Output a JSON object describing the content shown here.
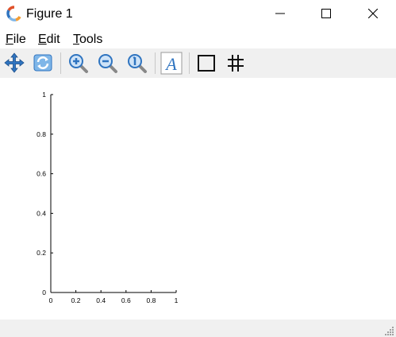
{
  "window": {
    "title": "Figure 1"
  },
  "menu": {
    "file": {
      "first": "F",
      "rest": "ile"
    },
    "edit": {
      "first": "E",
      "rest": "dit"
    },
    "tools": {
      "first": "T",
      "rest": "ools"
    }
  },
  "toolbar": {
    "icons": [
      "pan-icon",
      "rotate-icon",
      "zoom-in-icon",
      "zoom-out-icon",
      "zoom-reset-icon",
      "text-icon",
      "box-icon",
      "grid-icon"
    ]
  },
  "colors": {
    "toolbar_bg": "#f0f0f0",
    "icon_blue": "#2f74c0",
    "icon_light_blue": "#7fb6e8"
  },
  "chart_data": {
    "type": "line",
    "series": [],
    "xlim": [
      0,
      1
    ],
    "ylim": [
      0,
      1
    ],
    "xticks": [
      "0",
      "0.2",
      "0.4",
      "0.6",
      "0.8",
      "1"
    ],
    "yticks": [
      "0",
      "0.2",
      "0.4",
      "0.6",
      "0.8",
      "1"
    ],
    "grid": false
  }
}
